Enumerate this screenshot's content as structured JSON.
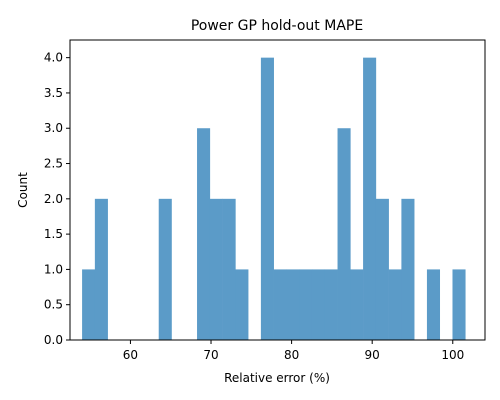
{
  "chart_data": {
    "type": "bar",
    "title": "Power GP hold-out MAPE",
    "xlabel": "Relative error (%)",
    "ylabel": "Count",
    "xlim": [
      52.5,
      104
    ],
    "ylim": [
      0,
      4.25
    ],
    "x_ticks": [
      60,
      70,
      80,
      90,
      100
    ],
    "y_ticks": [
      0.0,
      0.5,
      1.0,
      1.5,
      2.0,
      2.5,
      3.0,
      3.5,
      4.0
    ],
    "bar_color": "#5b9bc8",
    "bins": {
      "start": 54.0,
      "width": 1.585,
      "counts": [
        1,
        2,
        0,
        0,
        0,
        0,
        2,
        0,
        0,
        3,
        2,
        2,
        1,
        0,
        4,
        1,
        1,
        1,
        1,
        1,
        3,
        1,
        4,
        2,
        1,
        2,
        0,
        1,
        0,
        1
      ]
    },
    "grid": false,
    "legend": "none"
  }
}
